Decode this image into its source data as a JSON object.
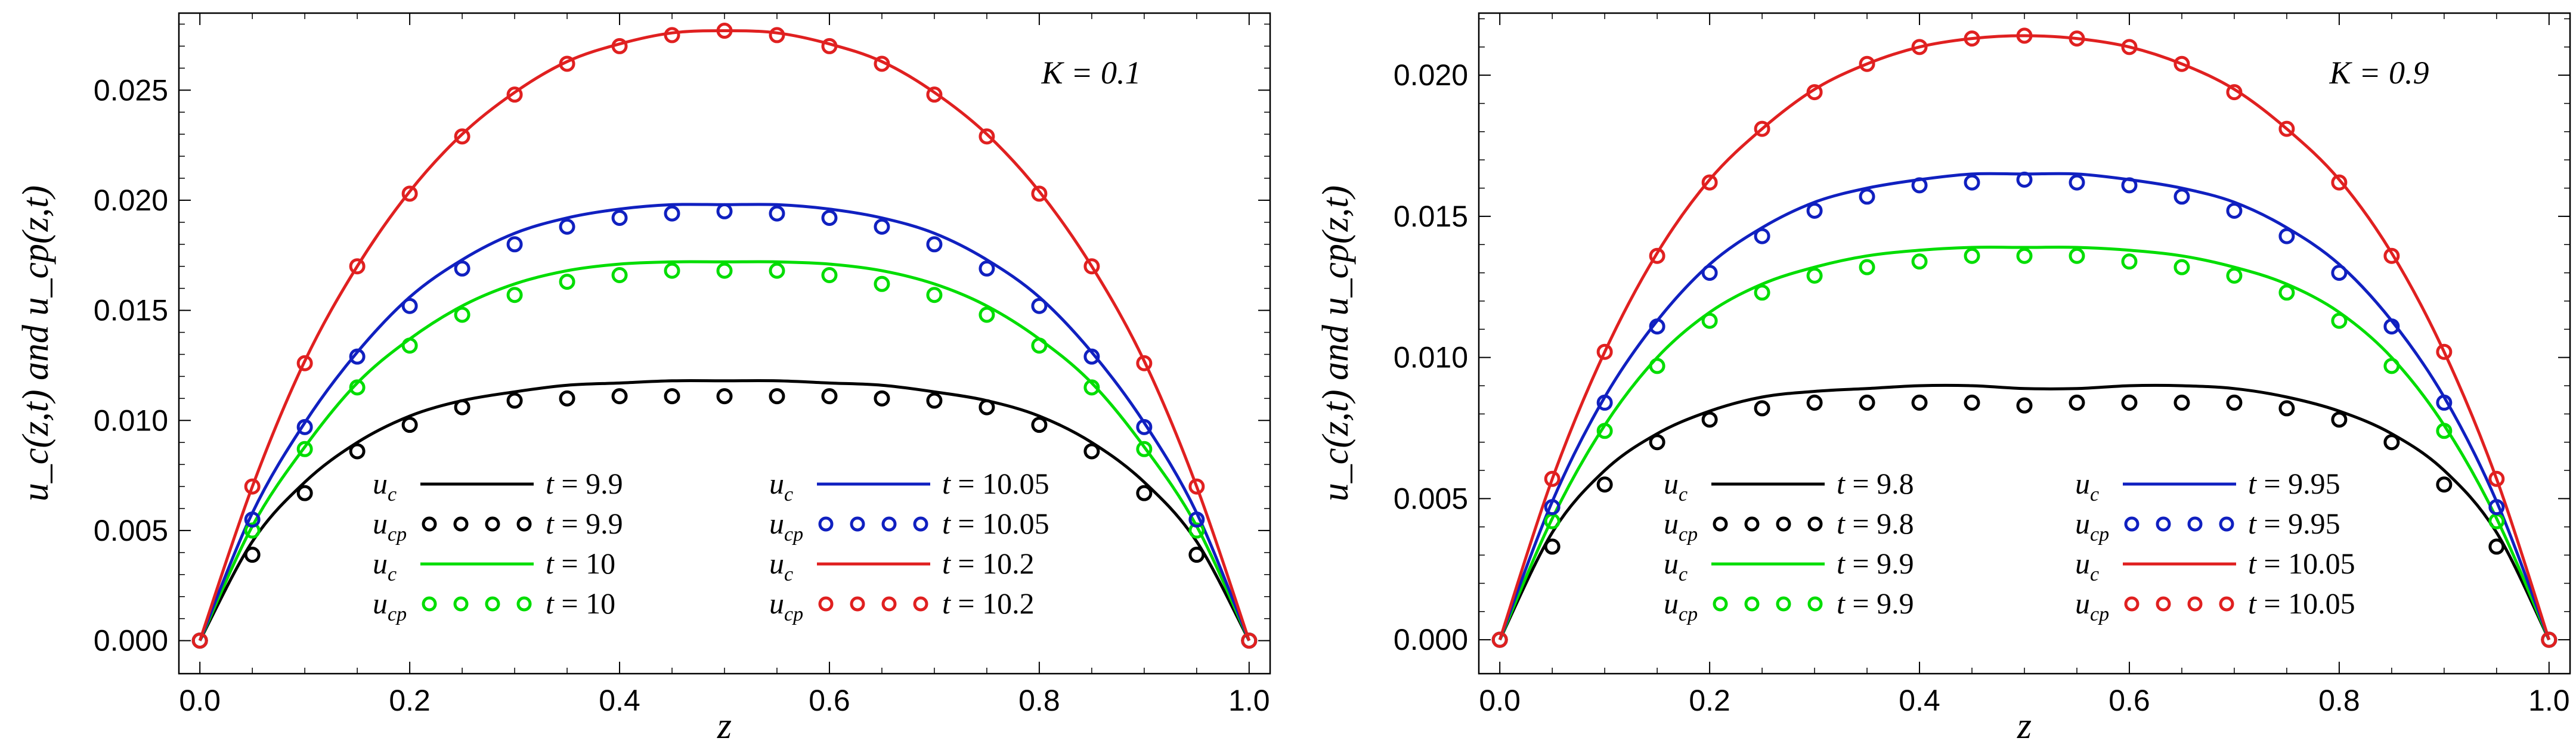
{
  "chart_data": [
    {
      "type": "line",
      "annotation": "K = 0.1",
      "xlabel": "z",
      "ylabel": "u_c(z,t) and u_cp(z,t)",
      "xlim": [
        -0.02,
        1.02
      ],
      "ylim": [
        -0.0015,
        0.0285
      ],
      "x_ticks": [
        "0.0",
        "0.2",
        "0.4",
        "0.6",
        "0.8",
        "1.0"
      ],
      "x_tick_values": [
        0,
        0.2,
        0.4,
        0.6,
        0.8,
        1.0
      ],
      "y_ticks": [
        "0.000",
        "0.005",
        "0.010",
        "0.015",
        "0.020",
        "0.025"
      ],
      "y_tick_values": [
        0,
        0.005,
        0.01,
        0.015,
        0.02,
        0.025
      ],
      "x": [
        0,
        0.05,
        0.1,
        0.15,
        0.2,
        0.25,
        0.3,
        0.35,
        0.4,
        0.45,
        0.5,
        0.55,
        0.6,
        0.65,
        0.7,
        0.75,
        0.8,
        0.85,
        0.9,
        0.95,
        1.0
      ],
      "series": [
        {
          "name": "u_c",
          "t_label": "t = 9.9",
          "color": "#000000",
          "kind": "line",
          "values": [
            0,
            0.0045,
            0.0072,
            0.009,
            0.0102,
            0.0109,
            0.0113,
            0.0116,
            0.0117,
            0.0118,
            0.0118,
            0.0118,
            0.0117,
            0.0116,
            0.0113,
            0.0109,
            0.0102,
            0.009,
            0.0072,
            0.0045,
            0
          ]
        },
        {
          "name": "u_cp",
          "t_label": "t = 9.9",
          "color": "#000000",
          "kind": "points",
          "values": [
            0,
            0.0039,
            0.0067,
            0.0086,
            0.0098,
            0.0106,
            0.0109,
            0.011,
            0.0111,
            0.0111,
            0.0111,
            0.0111,
            0.0111,
            0.011,
            0.0109,
            0.0106,
            0.0098,
            0.0086,
            0.0067,
            0.0039,
            0
          ]
        },
        {
          "name": "u_c",
          "t_label": "t = 10",
          "color": "#00dd00",
          "kind": "line",
          "values": [
            0,
            0.0052,
            0.0088,
            0.0117,
            0.0137,
            0.0152,
            0.0162,
            0.0168,
            0.0171,
            0.0172,
            0.0172,
            0.0172,
            0.0171,
            0.0168,
            0.0162,
            0.0152,
            0.0137,
            0.0117,
            0.0088,
            0.0052,
            0
          ]
        },
        {
          "name": "u_cp",
          "t_label": "t = 10",
          "color": "#00dd00",
          "kind": "points",
          "values": [
            0,
            0.005,
            0.0087,
            0.0115,
            0.0134,
            0.0148,
            0.0157,
            0.0163,
            0.0166,
            0.0168,
            0.0168,
            0.0168,
            0.0166,
            0.0162,
            0.0157,
            0.0148,
            0.0134,
            0.0115,
            0.0087,
            0.005,
            0
          ]
        },
        {
          "name": "u_c",
          "t_label": "t = 10.05",
          "color": "#1020c0",
          "kind": "line",
          "values": [
            0,
            0.0058,
            0.0099,
            0.0131,
            0.0156,
            0.0173,
            0.0185,
            0.0192,
            0.0196,
            0.0198,
            0.0198,
            0.0198,
            0.0196,
            0.0192,
            0.0185,
            0.0173,
            0.0156,
            0.0131,
            0.0099,
            0.0058,
            0
          ]
        },
        {
          "name": "u_cp",
          "t_label": "t = 10.05",
          "color": "#1020c0",
          "kind": "points",
          "values": [
            0,
            0.0055,
            0.0097,
            0.0129,
            0.0152,
            0.0169,
            0.018,
            0.0188,
            0.0192,
            0.0194,
            0.0195,
            0.0194,
            0.0192,
            0.0188,
            0.018,
            0.0169,
            0.0152,
            0.0129,
            0.0097,
            0.0055,
            0
          ]
        },
        {
          "name": "u_c",
          "t_label": "t = 10.2",
          "color": "#e02020",
          "kind": "line",
          "values": [
            0,
            0.007,
            0.0127,
            0.017,
            0.0204,
            0.023,
            0.0249,
            0.0263,
            0.0271,
            0.0276,
            0.0277,
            0.0276,
            0.0271,
            0.0263,
            0.0249,
            0.023,
            0.0204,
            0.017,
            0.0127,
            0.007,
            0
          ]
        },
        {
          "name": "u_cp",
          "t_label": "t = 10.2",
          "color": "#e02020",
          "kind": "points",
          "values": [
            0,
            0.007,
            0.0126,
            0.017,
            0.0203,
            0.0229,
            0.0248,
            0.0262,
            0.027,
            0.0275,
            0.0277,
            0.0275,
            0.027,
            0.0262,
            0.0248,
            0.0229,
            0.0203,
            0.017,
            0.0126,
            0.007,
            0
          ]
        }
      ],
      "legend": {
        "left": [
          {
            "sym": "u",
            "sub": "c",
            "style": "line",
            "color": "#000000",
            "t_label": "t = 9.9"
          },
          {
            "sym": "u",
            "sub": "cp",
            "style": "points",
            "color": "#000000",
            "t_label": "t = 9.9"
          },
          {
            "sym": "u",
            "sub": "c",
            "style": "line",
            "color": "#00dd00",
            "t_label": "t = 10"
          },
          {
            "sym": "u",
            "sub": "cp",
            "style": "points",
            "color": "#00dd00",
            "t_label": "t = 10"
          }
        ],
        "right": [
          {
            "sym": "u",
            "sub": "c",
            "style": "line",
            "color": "#1020c0",
            "t_label": "t = 10.05"
          },
          {
            "sym": "u",
            "sub": "cp",
            "style": "points",
            "color": "#1020c0",
            "t_label": "t = 10.05"
          },
          {
            "sym": "u",
            "sub": "c",
            "style": "line",
            "color": "#e02020",
            "t_label": "t = 10.2"
          },
          {
            "sym": "u",
            "sub": "cp",
            "style": "points",
            "color": "#e02020",
            "t_label": "t = 10.2"
          }
        ]
      }
    },
    {
      "type": "line",
      "annotation": "K = 0.9",
      "xlabel": "z",
      "ylabel": "u_c(z,t) and u_cp(z,t)",
      "xlim": [
        -0.02,
        1.02
      ],
      "ylim": [
        -0.0012,
        0.0222
      ],
      "x_ticks": [
        "0.0",
        "0.2",
        "0.4",
        "0.6",
        "0.8",
        "1.0"
      ],
      "x_tick_values": [
        0,
        0.2,
        0.4,
        0.6,
        0.8,
        1.0
      ],
      "y_ticks": [
        "0.000",
        "0.005",
        "0.010",
        "0.015",
        "0.020"
      ],
      "y_tick_values": [
        0,
        0.005,
        0.01,
        0.015,
        0.02
      ],
      "x": [
        0,
        0.05,
        0.1,
        0.15,
        0.2,
        0.25,
        0.3,
        0.35,
        0.4,
        0.45,
        0.5,
        0.55,
        0.6,
        0.65,
        0.7,
        0.75,
        0.8,
        0.85,
        0.9,
        0.95,
        1.0
      ],
      "series": [
        {
          "name": "u_c",
          "t_label": "t = 9.8",
          "color": "#000000",
          "kind": "line",
          "values": [
            0,
            0.0038,
            0.006,
            0.0073,
            0.0081,
            0.0086,
            0.0088,
            0.0089,
            0.009,
            0.009,
            0.0089,
            0.0089,
            0.009,
            0.009,
            0.0089,
            0.0086,
            0.0081,
            0.0073,
            0.006,
            0.0038,
            0
          ]
        },
        {
          "name": "u_cp",
          "t_label": "t = 9.8",
          "color": "#000000",
          "kind": "points",
          "values": [
            0,
            0.0033,
            0.0055,
            0.007,
            0.0078,
            0.0082,
            0.0084,
            0.0084,
            0.0084,
            0.0084,
            0.0083,
            0.0084,
            0.0084,
            0.0084,
            0.0084,
            0.0082,
            0.0078,
            0.007,
            0.0055,
            0.0033,
            0
          ]
        },
        {
          "name": "u_c",
          "t_label": "t = 9.9",
          "color": "#00dd00",
          "kind": "line",
          "values": [
            0,
            0.0043,
            0.0076,
            0.01,
            0.0116,
            0.0126,
            0.0132,
            0.0136,
            0.0138,
            0.0139,
            0.0139,
            0.0139,
            0.0138,
            0.0136,
            0.0132,
            0.0126,
            0.0116,
            0.01,
            0.0076,
            0.0043,
            0
          ]
        },
        {
          "name": "u_cp",
          "t_label": "t = 9.9",
          "color": "#00dd00",
          "kind": "points",
          "values": [
            0,
            0.0042,
            0.0074,
            0.0097,
            0.0113,
            0.0123,
            0.0129,
            0.0132,
            0.0134,
            0.0136,
            0.0136,
            0.0136,
            0.0134,
            0.0132,
            0.0129,
            0.0123,
            0.0113,
            0.0097,
            0.0074,
            0.0042,
            0
          ]
        },
        {
          "name": "u_c",
          "t_label": "t = 9.95",
          "color": "#1020c0",
          "kind": "line",
          "values": [
            0,
            0.0049,
            0.0086,
            0.0113,
            0.0133,
            0.0146,
            0.0155,
            0.016,
            0.0163,
            0.0165,
            0.0165,
            0.0165,
            0.0163,
            0.016,
            0.0155,
            0.0146,
            0.0133,
            0.0113,
            0.0086,
            0.0049,
            0
          ]
        },
        {
          "name": "u_cp",
          "t_label": "t = 9.95",
          "color": "#1020c0",
          "kind": "points",
          "values": [
            0,
            0.0047,
            0.0084,
            0.0111,
            0.013,
            0.0143,
            0.0152,
            0.0157,
            0.0161,
            0.0162,
            0.0163,
            0.0162,
            0.0161,
            0.0157,
            0.0152,
            0.0143,
            0.013,
            0.0111,
            0.0084,
            0.0047,
            0
          ]
        },
        {
          "name": "u_c",
          "t_label": "t = 10.05",
          "color": "#e02020",
          "kind": "line",
          "values": [
            0,
            0.0057,
            0.0102,
            0.0137,
            0.0163,
            0.0181,
            0.0195,
            0.0204,
            0.021,
            0.0213,
            0.0214,
            0.0213,
            0.021,
            0.0204,
            0.0195,
            0.0181,
            0.0163,
            0.0137,
            0.0102,
            0.0057,
            0
          ]
        },
        {
          "name": "u_cp",
          "t_label": "t = 10.05",
          "color": "#e02020",
          "kind": "points",
          "values": [
            0,
            0.0057,
            0.0102,
            0.0136,
            0.0162,
            0.0181,
            0.0194,
            0.0204,
            0.021,
            0.0213,
            0.0214,
            0.0213,
            0.021,
            0.0204,
            0.0194,
            0.0181,
            0.0162,
            0.0136,
            0.0102,
            0.0057,
            0
          ]
        }
      ],
      "legend": {
        "left": [
          {
            "sym": "u",
            "sub": "c",
            "style": "line",
            "color": "#000000",
            "t_label": "t = 9.8"
          },
          {
            "sym": "u",
            "sub": "cp",
            "style": "points",
            "color": "#000000",
            "t_label": "t = 9.8"
          },
          {
            "sym": "u",
            "sub": "c",
            "style": "line",
            "color": "#00dd00",
            "t_label": "t = 9.9"
          },
          {
            "sym": "u",
            "sub": "cp",
            "style": "points",
            "color": "#00dd00",
            "t_label": "t = 9.9"
          }
        ],
        "right": [
          {
            "sym": "u",
            "sub": "c",
            "style": "line",
            "color": "#1020c0",
            "t_label": "t = 9.95"
          },
          {
            "sym": "u",
            "sub": "cp",
            "style": "points",
            "color": "#1020c0",
            "t_label": "t = 9.95"
          },
          {
            "sym": "u",
            "sub": "c",
            "style": "line",
            "color": "#e02020",
            "t_label": "t = 10.05"
          },
          {
            "sym": "u",
            "sub": "cp",
            "style": "points",
            "color": "#e02020",
            "t_label": "t = 10.05"
          }
        ]
      }
    }
  ]
}
